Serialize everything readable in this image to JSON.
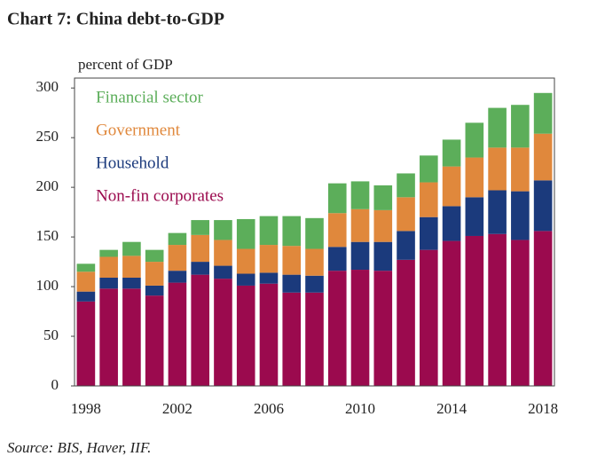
{
  "chart_data": {
    "type": "stacked_bar",
    "title": "Chart 7: China debt-to-GDP",
    "y_label": "percent of GDP",
    "source": "Source: BIS, Haver, IIF.",
    "categories": [
      "1998",
      null,
      null,
      null,
      "2002",
      null,
      null,
      null,
      "2006",
      null,
      null,
      null,
      "2010",
      null,
      null,
      null,
      "2014",
      null,
      null,
      null,
      "2018"
    ],
    "series": [
      {
        "name": "Non-fin corporates",
        "color": "#9b0a4e",
        "values": [
          85,
          98,
          98,
          91,
          104,
          112,
          108,
          101,
          103,
          94,
          94,
          116,
          117,
          116,
          127,
          137,
          146,
          151,
          153,
          147,
          156
        ]
      },
      {
        "name": "Household",
        "color": "#1b3a7c",
        "values": [
          10,
          11,
          11,
          10,
          12,
          13,
          13,
          12,
          11,
          18,
          17,
          24,
          28,
          29,
          29,
          33,
          35,
          39,
          44,
          49,
          51
        ]
      },
      {
        "name": "Government",
        "color": "#e0883c",
        "values": [
          20,
          21,
          22,
          24,
          26,
          27,
          26,
          25,
          28,
          29,
          27,
          34,
          33,
          32,
          34,
          35,
          40,
          40,
          43,
          44,
          47
        ]
      },
      {
        "name": "Financial sector",
        "color": "#5cae5a",
        "values": [
          8,
          7,
          14,
          12,
          12,
          15,
          20,
          30,
          29,
          30,
          31,
          30,
          28,
          25,
          24,
          27,
          27,
          35,
          40,
          43,
          41
        ]
      }
    ],
    "ylim": [
      0,
      310
    ],
    "yticks": [
      0,
      50,
      100,
      150,
      200,
      250,
      300
    ],
    "legend": "upper left"
  }
}
